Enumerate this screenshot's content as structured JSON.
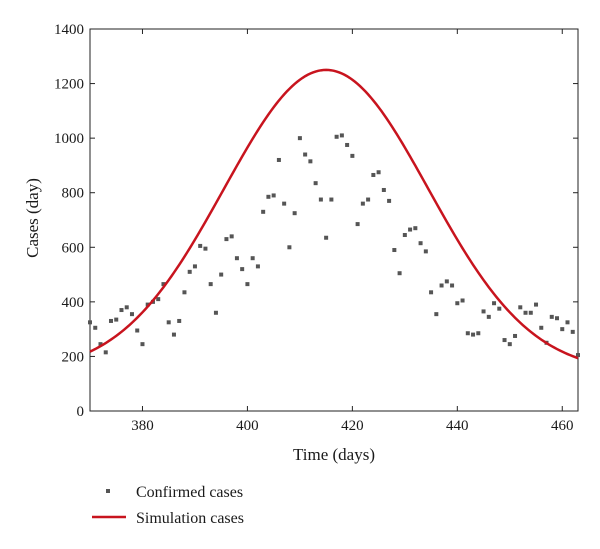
{
  "chart_data": {
    "type": "scatter",
    "title": "",
    "xlabel": "Time (days)",
    "ylabel": "Cases (day)",
    "xlim": [
      370,
      463
    ],
    "ylim": [
      0,
      1400
    ],
    "x_ticks": [
      380,
      400,
      420,
      440,
      460
    ],
    "y_ticks": [
      0,
      200,
      400,
      600,
      800,
      1000,
      1200,
      1400
    ],
    "grid": false,
    "legend_position": "bottom-left",
    "colors": {
      "confirmed": "#555555",
      "simulation": "#c8141e"
    },
    "series": [
      {
        "name": "Confirmed cases",
        "kind": "scatter",
        "x": [
          370,
          371,
          372,
          373,
          374,
          375,
          376,
          377,
          378,
          379,
          380,
          381,
          382,
          383,
          384,
          385,
          386,
          387,
          388,
          389,
          390,
          391,
          392,
          393,
          394,
          395,
          396,
          397,
          398,
          399,
          400,
          401,
          402,
          403,
          404,
          405,
          406,
          407,
          408,
          409,
          410,
          411,
          412,
          413,
          414,
          415,
          416,
          417,
          418,
          419,
          420,
          421,
          422,
          423,
          424,
          425,
          426,
          427,
          428,
          429,
          430,
          431,
          432,
          433,
          434,
          435,
          436,
          437,
          438,
          439,
          440,
          441,
          442,
          443,
          444,
          445,
          446,
          447,
          448,
          449,
          450,
          451,
          452,
          453,
          454,
          455,
          456,
          457,
          458,
          459,
          460,
          461,
          462,
          463
        ],
        "y": [
          325,
          305,
          245,
          215,
          330,
          335,
          370,
          380,
          355,
          295,
          245,
          390,
          400,
          410,
          465,
          325,
          280,
          330,
          435,
          510,
          530,
          605,
          595,
          465,
          360,
          500,
          630,
          640,
          560,
          520,
          465,
          560,
          530,
          730,
          785,
          790,
          920,
          760,
          600,
          725,
          1000,
          940,
          915,
          835,
          775,
          635,
          775,
          1005,
          1010,
          975,
          935,
          685,
          760,
          775,
          865,
          875,
          810,
          770,
          590,
          505,
          645,
          665,
          670,
          615,
          585,
          435,
          355,
          460,
          475,
          460,
          395,
          405,
          285,
          280,
          285,
          365,
          345,
          395,
          375,
          260,
          245,
          275,
          380,
          360,
          360,
          390,
          305,
          250,
          345,
          340,
          300,
          325,
          290,
          205
        ]
      },
      {
        "name": "Simulation cases",
        "kind": "line",
        "peak": 1250,
        "peak_day": 415,
        "baseline": 140,
        "width": 19.5
      }
    ]
  }
}
